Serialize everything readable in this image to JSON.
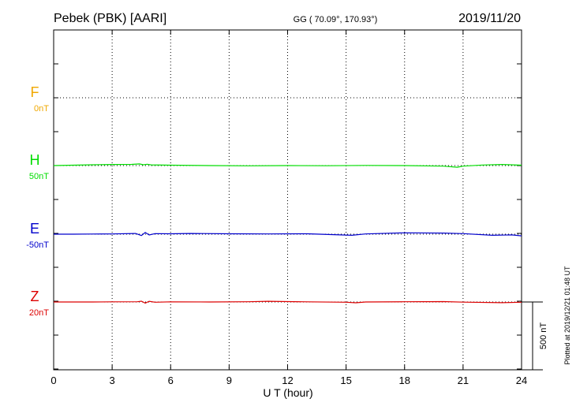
{
  "chart_data": {
    "type": "line",
    "title": "Pebek (PBK)  [AARI]",
    "coords": "GG ( 70.09°, 170.93°)",
    "date": "2019/11/20",
    "xlabel": "U T (hour)",
    "xlim": [
      0,
      24
    ],
    "xticks": [
      "0",
      "3",
      "6",
      "9",
      "12",
      "15",
      "18",
      "21",
      "24"
    ],
    "grid": true,
    "scale_bar": {
      "label": "500 nT",
      "value": 500
    },
    "plotted_note": "Plotted at 2019/12/21 01:48 UT",
    "series": [
      {
        "name": "F",
        "baseline_label": "0nT",
        "color": "#f0a800",
        "has_data": false,
        "x": [],
        "values": []
      },
      {
        "name": "H",
        "baseline_label": "50nT",
        "color": "#00dd00",
        "has_data": true,
        "x": [
          0,
          1,
          2,
          3,
          4,
          4.4,
          4.6,
          4.8,
          5,
          6,
          8,
          10,
          12,
          14,
          16,
          18,
          20,
          20.7,
          21,
          22,
          23,
          24
        ],
        "values": [
          0,
          3,
          6,
          8,
          9,
          12,
          6,
          10,
          5,
          3,
          0,
          -2,
          0,
          -1,
          1,
          0,
          -4,
          -12,
          -4,
          4,
          8,
          3
        ]
      },
      {
        "name": "E",
        "baseline_label": "-50nT",
        "color": "#0000cc",
        "has_data": true,
        "x": [
          0,
          1,
          2,
          3,
          4.2,
          4.5,
          4.7,
          4.9,
          5.2,
          6,
          7,
          9,
          11,
          13,
          15.3,
          16,
          18,
          20,
          21,
          22.5,
          23.5,
          24
        ],
        "values": [
          0,
          0,
          1,
          2,
          5,
          -10,
          12,
          -6,
          4,
          3,
          5,
          3,
          2,
          3,
          -8,
          2,
          10,
          8,
          4,
          -8,
          -5,
          -12
        ]
      },
      {
        "name": "Z",
        "baseline_label": "20nT",
        "color": "#dd0000",
        "has_data": true,
        "x": [
          0,
          2,
          3,
          4.3,
          4.5,
          4.7,
          4.9,
          5.2,
          6,
          8,
          10,
          11,
          12,
          13,
          15,
          15.5,
          16,
          18,
          20,
          21,
          23,
          24
        ],
        "values": [
          0,
          0,
          1,
          2,
          6,
          -8,
          5,
          -2,
          1,
          0,
          2,
          5,
          3,
          1,
          -2,
          -6,
          0,
          2,
          3,
          -1,
          -5,
          -2
        ]
      }
    ]
  }
}
